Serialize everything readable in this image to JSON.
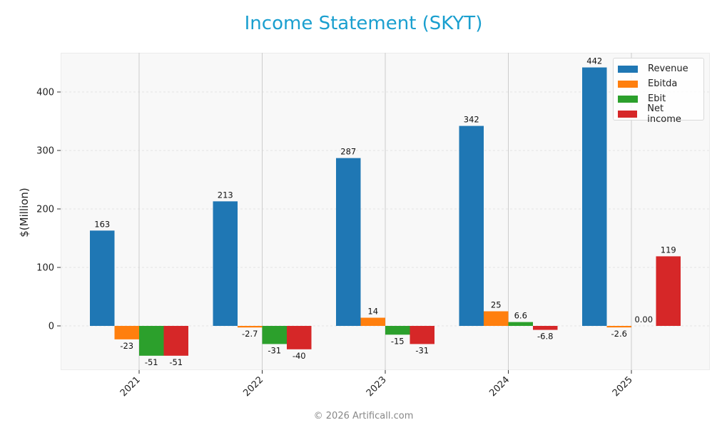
{
  "title": "Income Statement (SKYT)",
  "footer": "© 2026 Artificall.com",
  "chart_data": {
    "type": "bar",
    "title": "Income Statement (SKYT)",
    "xlabel": "",
    "ylabel": "$(Million)",
    "categories": [
      "2021",
      "2022",
      "2023",
      "2024",
      "2025"
    ],
    "series": [
      {
        "name": "Revenue",
        "color": "#1f77b4",
        "values": [
          163,
          213,
          287,
          342,
          442
        ],
        "labels": [
          "163",
          "213",
          "287",
          "342",
          "442"
        ]
      },
      {
        "name": "Ebitda",
        "color": "#ff7f0e",
        "values": [
          -23,
          -2.7,
          14,
          25,
          -2.6
        ],
        "labels": [
          "-23",
          "-2.7",
          "14",
          "25",
          "-2.6"
        ]
      },
      {
        "name": "Ebit",
        "color": "#2ca02c",
        "values": [
          -51,
          -31,
          -15,
          6.6,
          0.0
        ],
        "labels": [
          "-51",
          "-31",
          "-15",
          "6.6",
          "0.00"
        ]
      },
      {
        "name": "Net income",
        "color": "#d62728",
        "values": [
          -51,
          -40,
          -31,
          -6.8,
          119
        ],
        "labels": [
          "-51",
          "-40",
          "-31",
          "-6.8",
          "119"
        ]
      }
    ],
    "yticks": [
      0,
      100,
      200,
      300,
      400
    ],
    "ylim": [
      -75,
      468
    ],
    "grid": true,
    "legend_position": "upper right"
  }
}
